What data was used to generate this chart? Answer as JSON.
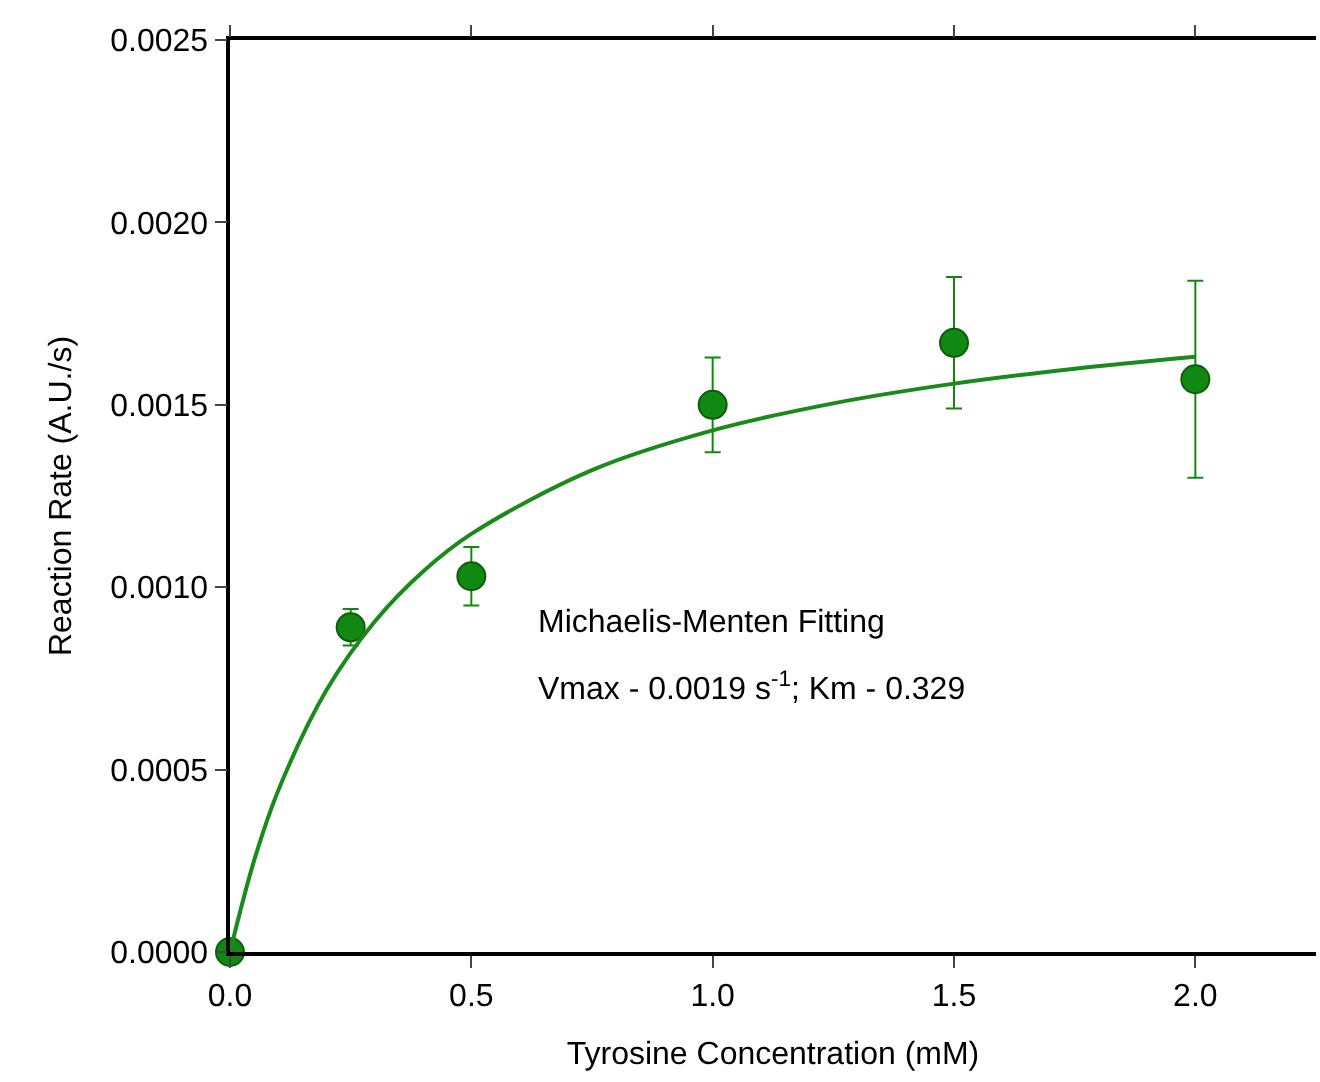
{
  "chart_data": {
    "type": "scatter",
    "xlabel": "Tyrosine Concentration (mM)",
    "ylabel": "Reaction Rate (A.U./s)",
    "x": [
      0,
      0.25,
      0.5,
      1.0,
      1.5,
      2.0
    ],
    "series": [
      {
        "color": "#118811",
        "marker": "circle",
        "values": [
          0,
          0.00089,
          0.00103,
          0.0015,
          0.00167,
          0.00157
        ],
        "errors": [
          null,
          5e-05,
          8e-05,
          0.00013,
          0.00018,
          0.00027
        ]
      },
      {
        "type": "line",
        "color": "#1a8a1a",
        "line_style": "solid",
        "marker": "none",
        "x": [
          0,
          0.05,
          0.1,
          0.2,
          0.3,
          0.4,
          0.5,
          0.75,
          1.0,
          1.25,
          1.5,
          1.75,
          2.0
        ],
        "values": [
          0,
          0.000251,
          0.000443,
          0.000718,
          0.000906,
          0.001043,
          0.001146,
          0.001321,
          0.00143,
          0.001504,
          0.001558,
          0.001599,
          0.001632
        ]
      }
    ],
    "xlim": [
      0,
      2.25
    ],
    "ylim": [
      0,
      0.0025
    ],
    "xticks": [
      {
        "value": 0,
        "label": "0.0"
      },
      {
        "value": 0.5,
        "label": "0.5"
      },
      {
        "value": 1.0,
        "label": "1.0"
      },
      {
        "value": 1.5,
        "label": "1.5"
      },
      {
        "value": 2.0,
        "label": "2.0"
      }
    ],
    "yticks": [
      {
        "value": 0,
        "label": "0.0000"
      },
      {
        "value": 0.0005,
        "label": "0.0005"
      },
      {
        "value": 0.001,
        "label": "0.0010"
      },
      {
        "value": 0.0015,
        "label": "0.0015"
      },
      {
        "value": 0.002,
        "label": "0.0020"
      },
      {
        "value": 0.0025,
        "label": "0.0025"
      }
    ],
    "annotations": [
      "Michaelis-Menten Fitting",
      "Vmax - 0.0019 s$^{-1}$; Km - 0.329"
    ]
  }
}
